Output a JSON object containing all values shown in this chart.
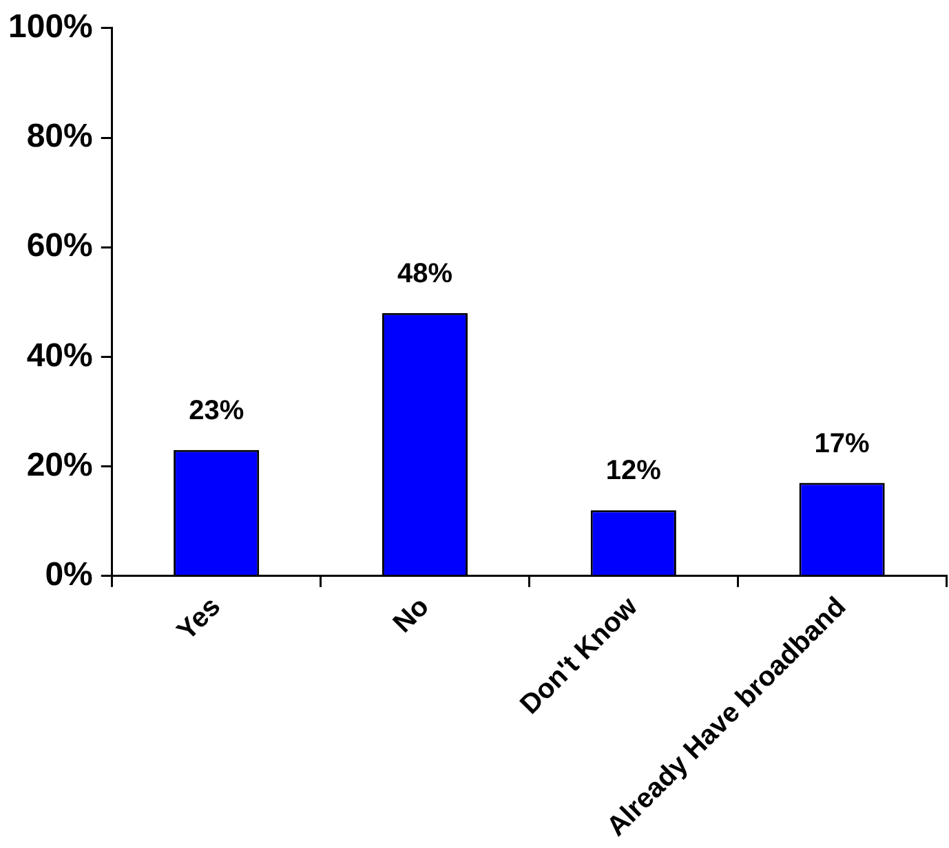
{
  "chart_data": {
    "type": "bar",
    "categories": [
      "Yes",
      "No",
      "Don't Know",
      "Already Have broadband"
    ],
    "values": [
      23,
      48,
      12,
      17
    ],
    "color": "#0000ff",
    "value_labels": [
      "23%",
      "48%",
      "12%",
      "17%"
    ],
    "ylim": [
      0,
      100
    ],
    "yticks": [
      {
        "value": 0,
        "label": "0%"
      },
      {
        "value": 20,
        "label": "20%"
      },
      {
        "value": 40,
        "label": "40%"
      },
      {
        "value": 60,
        "label": "60%"
      },
      {
        "value": 80,
        "label": "80%"
      },
      {
        "value": 100,
        "label": "100%"
      }
    ],
    "grid": false,
    "legend": false
  }
}
